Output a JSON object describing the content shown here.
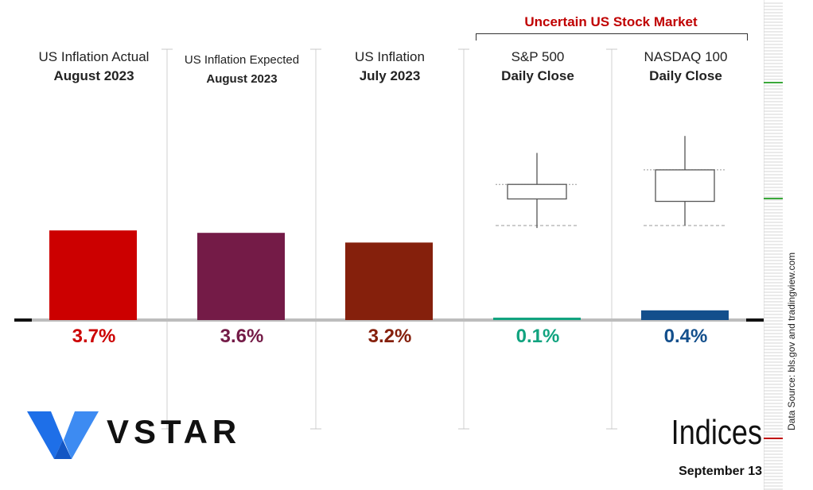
{
  "group_title": "Uncertain US Stock Market",
  "columns": [
    {
      "line1": "US Inflation Actual",
      "line2": "August 2023",
      "value_label": "3.7%",
      "color": "#cc0000"
    },
    {
      "line1": "US Inflation Expected",
      "line2": "August 2023",
      "value_label": "3.6%",
      "color": "#741b47"
    },
    {
      "line1": "US Inflation",
      "line2": "July 2023",
      "value_label": "3.2%",
      "color": "#85200c"
    },
    {
      "line1": "S&P 500",
      "line2": "Daily Close",
      "value_label": "0.1%",
      "color": "#11a37f"
    },
    {
      "line1": "NASDAQ 100",
      "line2": "Daily Close",
      "value_label": "0.4%",
      "color": "#134f8c"
    }
  ],
  "chart_data": {
    "type": "bar",
    "categories": [
      "US Inflation Actual August 2023",
      "US Inflation Expected August 2023",
      "US Inflation July 2023",
      "S&P 500 Daily Close",
      "NASDAQ 100 Daily Close"
    ],
    "values": [
      3.7,
      3.6,
      3.2,
      0.1,
      0.4
    ],
    "unit": "%",
    "ylim": [
      0,
      10
    ],
    "grid": false,
    "candles": [
      {
        "column": 3,
        "open": 5.6,
        "close": 5.0,
        "high": 6.9,
        "low": 3.8,
        "ref_high": 5.6,
        "ref_low": 3.9
      },
      {
        "column": 4,
        "open": 6.2,
        "close": 4.9,
        "high": 7.6,
        "low": 3.9,
        "ref_high": 6.2,
        "ref_low": 3.9
      }
    ]
  },
  "logo": {
    "text": "VSTAR",
    "color": "#1e6fe8"
  },
  "footer": {
    "title": "Indices",
    "date": "September 13"
  },
  "source_text": "Data Source: bls.gov and tradingview.com",
  "ruler": {
    "accent_green": "#3aa83a",
    "accent_red": "#c00000"
  }
}
